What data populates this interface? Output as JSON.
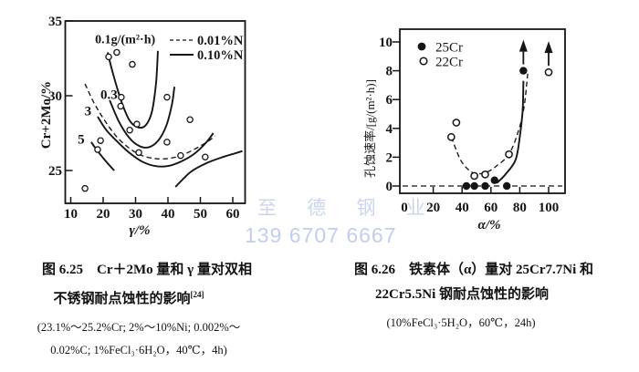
{
  "page": {
    "background": "#ffffff",
    "ink": "#151515"
  },
  "watermark": {
    "line1": "至 德 钢 业",
    "line2": "139 6707 6667",
    "color_line1": "#ccd5ee",
    "color_line2": "#c3cdec"
  },
  "figures": [
    {
      "id": "fig-6-25",
      "caption_line1": "图 6.25　Cr＋2Mo 量和 γ 量对双相",
      "caption_line2": "不锈钢耐点蚀性的影响",
      "caption_ref": "[24]",
      "subcaption_line1": "(23.1%～25.2%Cr; 2%～10%Ni; 0.002%～",
      "subcaption_line2": "0.02%C; 1%FeCl₃·6H₂O，40℃，4h)"
    },
    {
      "id": "fig-6-26",
      "caption_line1": "图 6.26　铁素体（α）量对 25Cr7.7Ni 和",
      "caption_line2": "22Cr5.5Ni 钢耐点蚀性的影响",
      "subcaption_line1": "(10%FeCl₃·5H₂O，60℃，24h)"
    }
  ],
  "chart_data": [
    {
      "type": "line",
      "title": "",
      "xlabel": "γ/%",
      "ylabel": "Cr+2Mo/%",
      "xlim": [
        8,
        64
      ],
      "ylim": [
        22.8,
        35
      ],
      "xticks": [
        10,
        20,
        30,
        40,
        50,
        60
      ],
      "yticks": [
        25,
        30,
        35
      ],
      "grid": false,
      "legend_position": "top-right-inside",
      "legend": [
        {
          "label": "0.01%N",
          "style": "dashed"
        },
        {
          "label": "0.10%N",
          "style": "solid"
        }
      ],
      "annotations": [
        {
          "text": "0.1g/(m²·h)",
          "x": 26.8,
          "y": 33.8,
          "size": 14,
          "weight": 700
        },
        {
          "text": "0.3",
          "x": 21.8,
          "y": 30.1,
          "size": 15,
          "weight": 600
        },
        {
          "text": "3",
          "x": 15.3,
          "y": 29.0,
          "size": 15,
          "weight": 600
        },
        {
          "text": "5",
          "x": 13.2,
          "y": 27.1,
          "size": 15,
          "weight": 600
        }
      ],
      "curves": [
        {
          "name": "iso-rate 0.1 g/(m2h), 0.10%N",
          "style": "solid",
          "points": [
            [
              21.4,
              32.9
            ],
            [
              23,
              31.5
            ],
            [
              25.5,
              29.7
            ],
            [
              28,
              28.4
            ],
            [
              30.5,
              27.9
            ],
            [
              33,
              28.0
            ],
            [
              35,
              28.9
            ],
            [
              36.3,
              30.8
            ],
            [
              36.9,
              33.0
            ]
          ]
        },
        {
          "name": "iso-rate 0.3, 0.10%N",
          "style": "solid",
          "points": [
            [
              22,
              29.7
            ],
            [
              24.8,
              28.3
            ],
            [
              28,
              27.2
            ],
            [
              31,
              26.65
            ],
            [
              34,
              26.55
            ],
            [
              37,
              27.0
            ],
            [
              39.5,
              28.0
            ],
            [
              41.2,
              29.4
            ],
            [
              42,
              30.6
            ]
          ]
        },
        {
          "name": "iso-rate, 0.01%N",
          "style": "dashed",
          "points": [
            [
              14.4,
              30.8
            ],
            [
              17,
              29.6
            ],
            [
              20,
              28.5
            ],
            [
              24,
              27.3
            ],
            [
              28,
              26.5
            ],
            [
              32,
              26.0
            ],
            [
              36,
              25.8
            ],
            [
              40,
              25.8
            ],
            [
              44,
              26.0
            ],
            [
              48,
              26.4
            ],
            [
              52,
              26.9
            ],
            [
              54.5,
              27.3
            ]
          ]
        },
        {
          "name": "iso-rate 3, 0.10%N",
          "style": "solid",
          "points": [
            [
              18.3,
              28.6
            ],
            [
              21,
              27.7
            ],
            [
              24.5,
              26.9
            ],
            [
              28,
              26.2
            ],
            [
              32,
              25.6
            ],
            [
              36,
              25.3
            ],
            [
              40,
              25.3
            ],
            [
              44,
              25.6
            ],
            [
              48,
              26.1
            ],
            [
              51.5,
              26.8
            ],
            [
              54,
              27.5
            ]
          ]
        },
        {
          "name": "iso-rate 5, 0.10%N",
          "style": "solid",
          "points": [
            [
              16.3,
              26.9
            ],
            [
              18.3,
              26.3
            ],
            [
              20.5,
              25.7
            ],
            [
              23.4,
              25.0
            ]
          ]
        },
        {
          "name": "iso-rate lower-right",
          "style": "solid",
          "points": [
            [
              42.3,
              23.9
            ],
            [
              47,
              24.9
            ],
            [
              52,
              25.5
            ],
            [
              57,
              25.9
            ],
            [
              63,
              26.3
            ]
          ]
        }
      ],
      "scatter": [
        {
          "marker": "open-circle",
          "points": [
            [
              24.2,
              32.9
            ],
            [
              21.7,
              32.6
            ],
            [
              29.0,
              32.1
            ],
            [
              25.6,
              29.9
            ],
            [
              25.4,
              29.3
            ],
            [
              30.4,
              28.1
            ],
            [
              28.2,
              27.7
            ],
            [
              39.7,
              29.9
            ],
            [
              46.8,
              28.4
            ],
            [
              19.2,
              27.0
            ],
            [
              18.3,
              26.4
            ],
            [
              31.0,
              26.2
            ],
            [
              39.7,
              26.9
            ],
            [
              43.9,
              26.0
            ],
            [
              51.5,
              25.9
            ],
            [
              14.4,
              23.8
            ]
          ]
        }
      ]
    },
    {
      "type": "scatter",
      "title": "",
      "xlabel": "α/%",
      "ylabel": "孔蚀速率/[g/(m²·h)]",
      "xlim": [
        -3,
        111
      ],
      "ylim": [
        -0.5,
        10.9
      ],
      "xticks": [
        0,
        20,
        40,
        60,
        80,
        100
      ],
      "yticks": [
        0,
        2,
        4,
        6,
        8,
        10
      ],
      "grid": false,
      "refline_y": 0,
      "legend_position": "top-left-inside",
      "legend": [
        {
          "label": "25Cr",
          "marker": "filled-circle"
        },
        {
          "label": "22Cr",
          "marker": "open-circle"
        }
      ],
      "series": [
        {
          "name": "25Cr",
          "marker": "filled-circle",
          "line": "solid",
          "points": [
            [
              43,
              0
            ],
            [
              48.5,
              0
            ],
            [
              56,
              0
            ],
            [
              62.5,
              0.4
            ],
            [
              71,
              0
            ],
            [
              82.5,
              8
            ]
          ],
          "curve": [
            [
              64,
              0.2
            ],
            [
              70,
              0.8
            ],
            [
              77,
              1.8
            ],
            [
              80,
              3.4
            ],
            [
              82,
              5.3
            ],
            [
              82.5,
              7.3
            ]
          ],
          "arrow_at": [
            82.5,
            8
          ]
        },
        {
          "name": "22Cr",
          "marker": "open-circle",
          "line": "dashed",
          "points": [
            [
              32.5,
              3.4
            ],
            [
              36,
              4.4
            ],
            [
              48.5,
              0.7
            ],
            [
              56,
              0.8
            ],
            [
              72.5,
              2.2
            ],
            [
              100,
              7.9
            ]
          ],
          "curve": [
            [
              32.5,
              3.4
            ],
            [
              39,
              1.8
            ],
            [
              46,
              1.0
            ],
            [
              52,
              0.85
            ],
            [
              58,
              1.0
            ],
            [
              64,
              1.4
            ],
            [
              72.5,
              2.2
            ],
            [
              79,
              3.8
            ],
            [
              83,
              5.5
            ],
            [
              85.5,
              7.8
            ]
          ],
          "arrow_at": [
            100,
            7.9
          ]
        }
      ]
    }
  ]
}
